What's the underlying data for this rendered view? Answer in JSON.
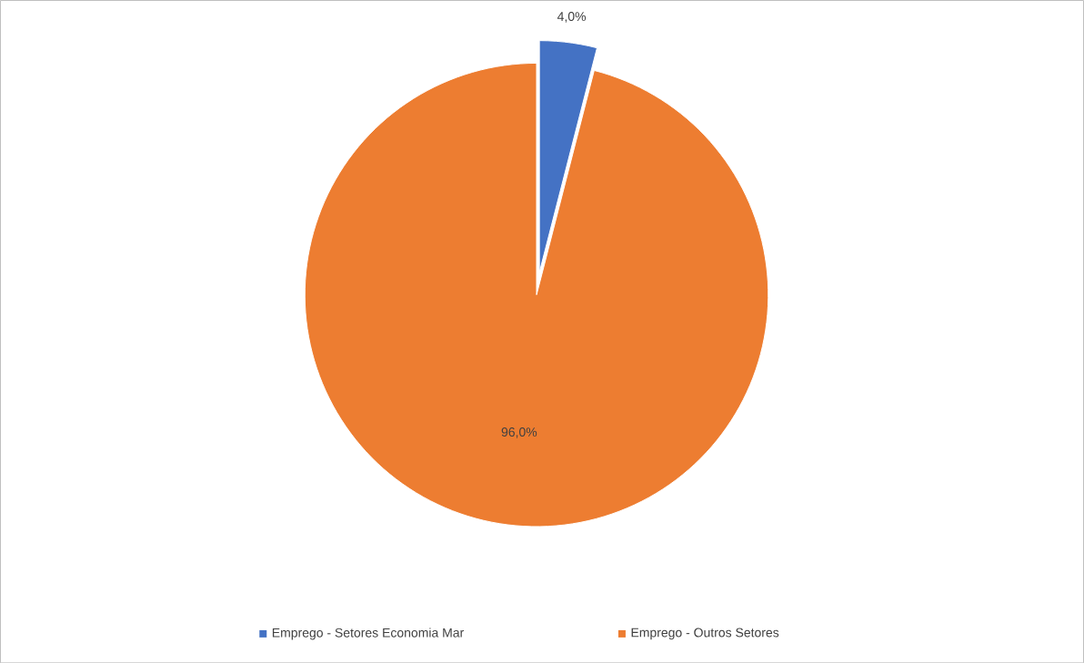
{
  "chart_data": {
    "type": "pie",
    "categories": [
      "Emprego - Setores Economia Mar",
      "Emprego - Outros Setores"
    ],
    "values": [
      4.0,
      96.0
    ],
    "colors": [
      "#4472c4",
      "#ed7d31"
    ],
    "value_labels": [
      "4,0%",
      "96,0%"
    ],
    "legend": "bottom"
  }
}
